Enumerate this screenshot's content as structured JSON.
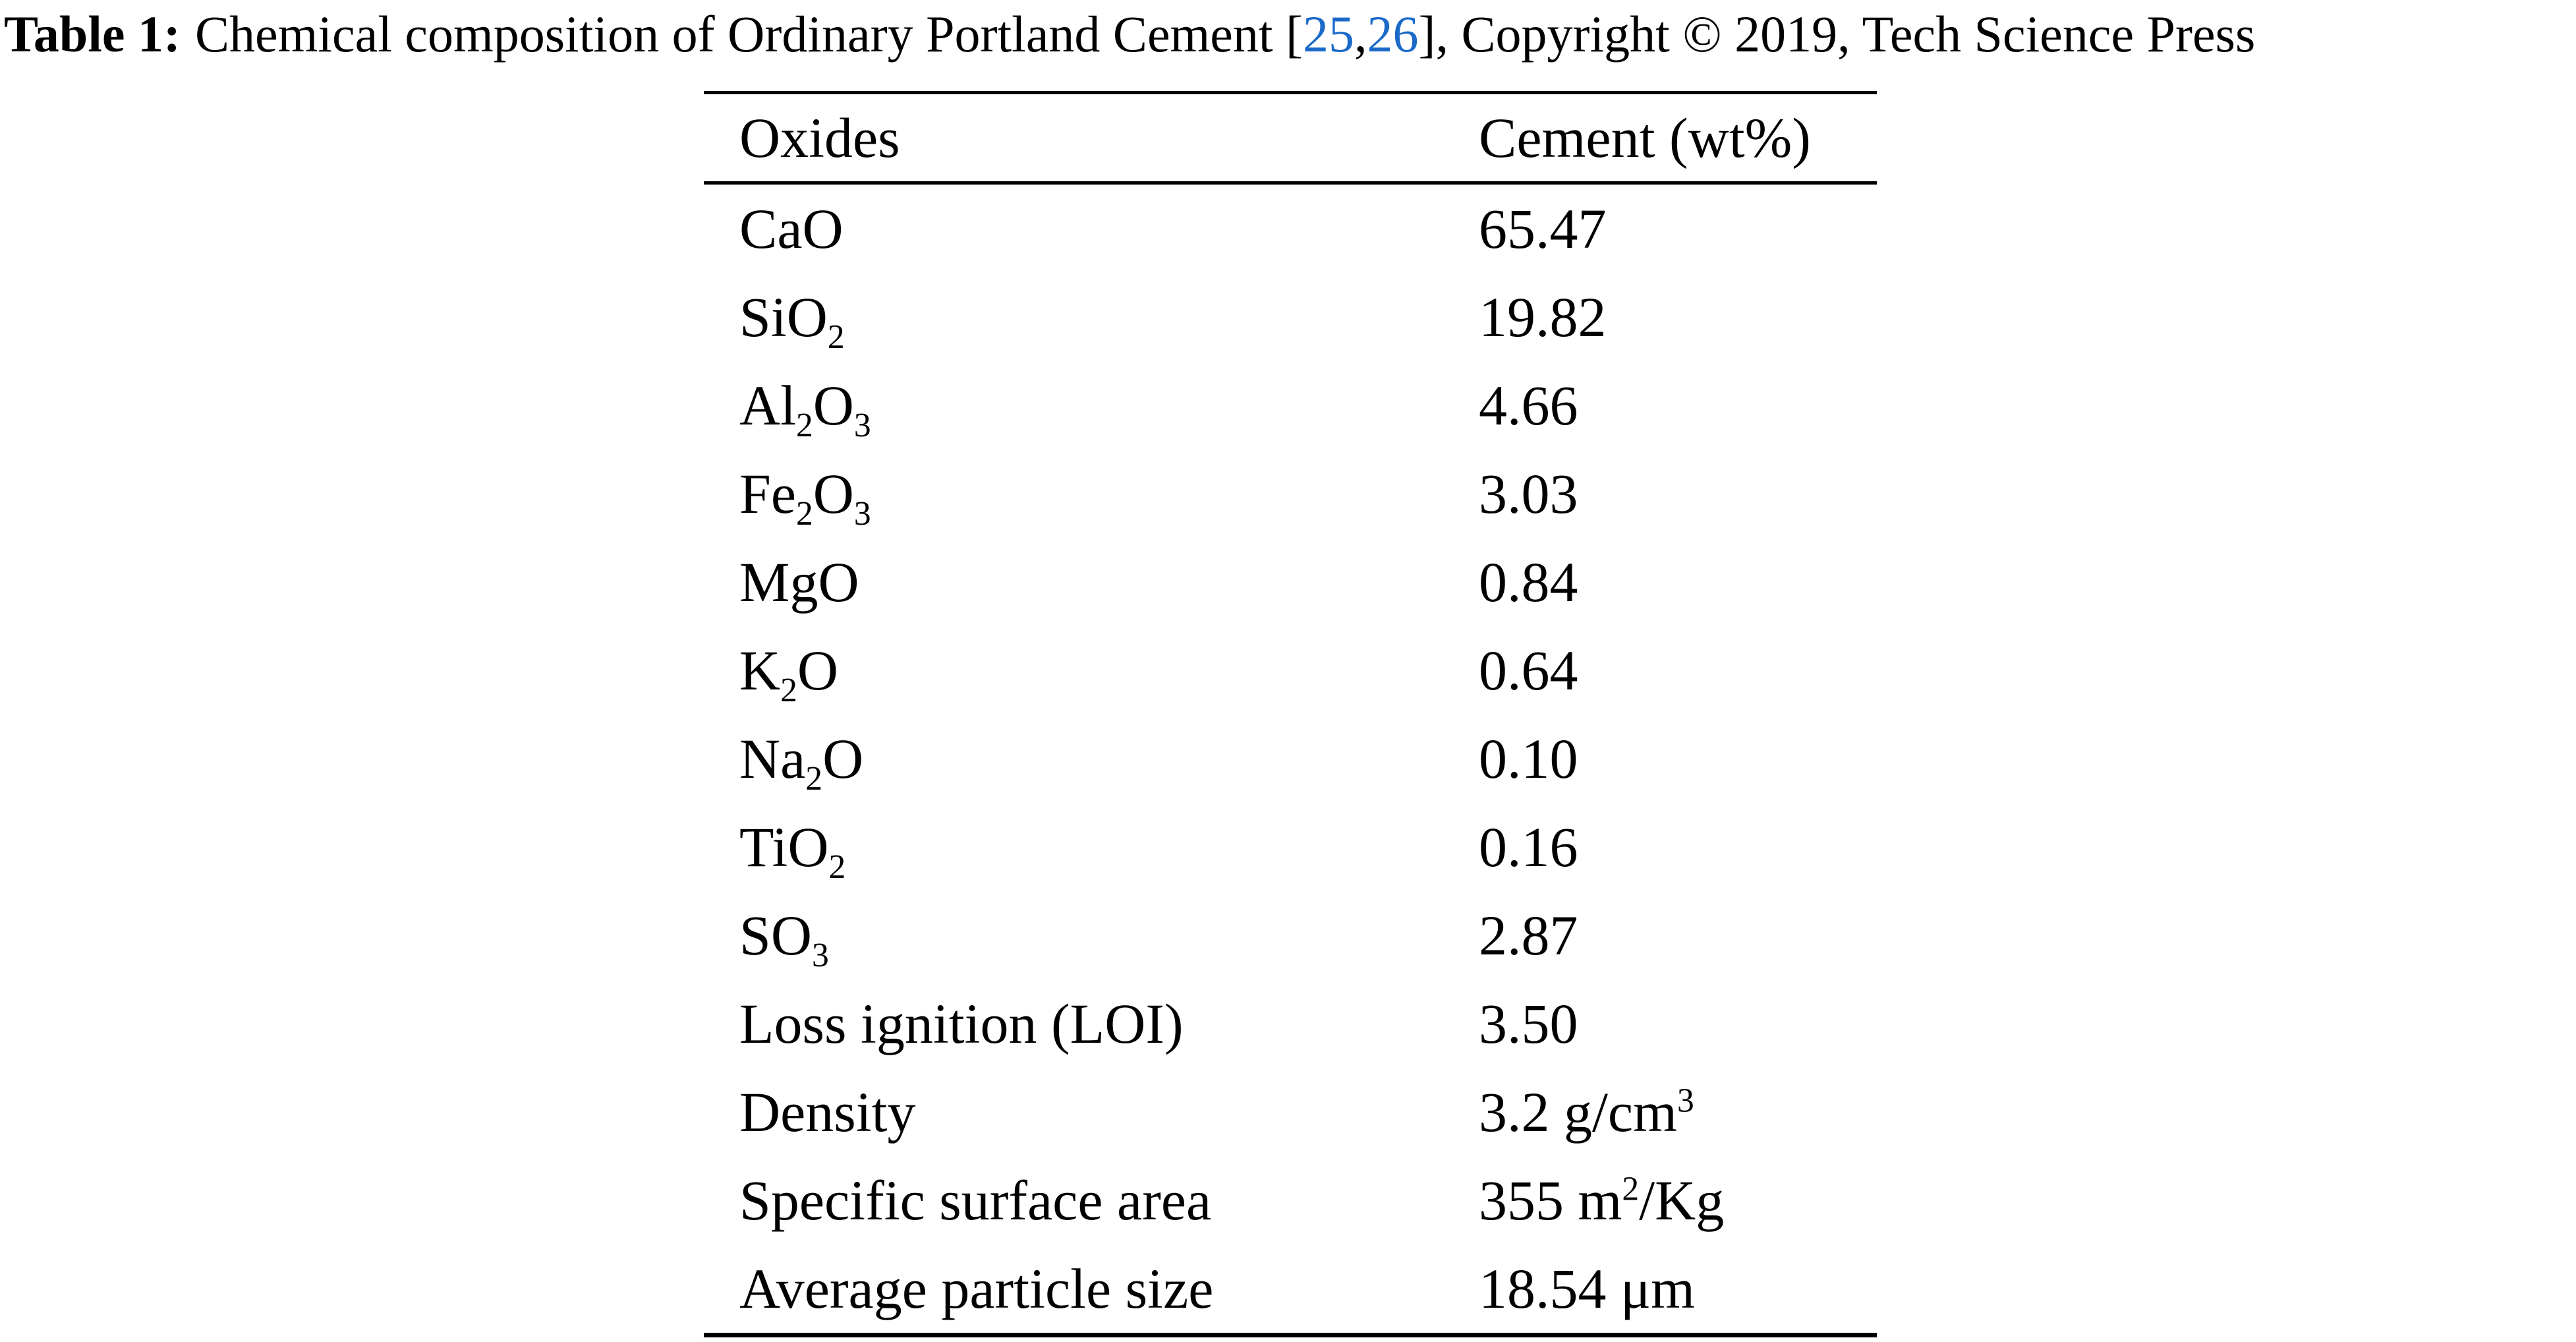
{
  "caption": {
    "label": "Table 1:",
    "text_before_refs": "Chemical composition of Ordinary Portland Cement [",
    "refs": [
      "25",
      "26"
    ],
    "refs_separator": ",",
    "text_after_refs": "], Copyright © 2019, Tech Science Press",
    "link_color": "#1B6AC8",
    "text_color": "#000000"
  },
  "table": {
    "headers": [
      "Oxides",
      "Cement (wt%)"
    ],
    "rows": [
      {
        "oxide": "CaO",
        "value": "65.47"
      },
      {
        "oxide": "SiO_2",
        "value": "19.82"
      },
      {
        "oxide": "Al_2O_3",
        "value": "4.66"
      },
      {
        "oxide": "Fe_2O_3",
        "value": "3.03"
      },
      {
        "oxide": "MgO",
        "value": "0.84"
      },
      {
        "oxide": "K_2O",
        "value": "0.64"
      },
      {
        "oxide": "Na_2O",
        "value": "0.10"
      },
      {
        "oxide": "TiO_2",
        "value": "0.16"
      },
      {
        "oxide": "SO_3",
        "value": "2.87"
      },
      {
        "oxide": "Loss ignition (LOI)",
        "value": "3.50"
      },
      {
        "oxide": "Density",
        "value": "3.2 g/cm^3"
      },
      {
        "oxide": "Specific surface area",
        "value": "355 m^2/Kg"
      },
      {
        "oxide": "Average particle size",
        "value": "18.54 μm"
      }
    ]
  }
}
